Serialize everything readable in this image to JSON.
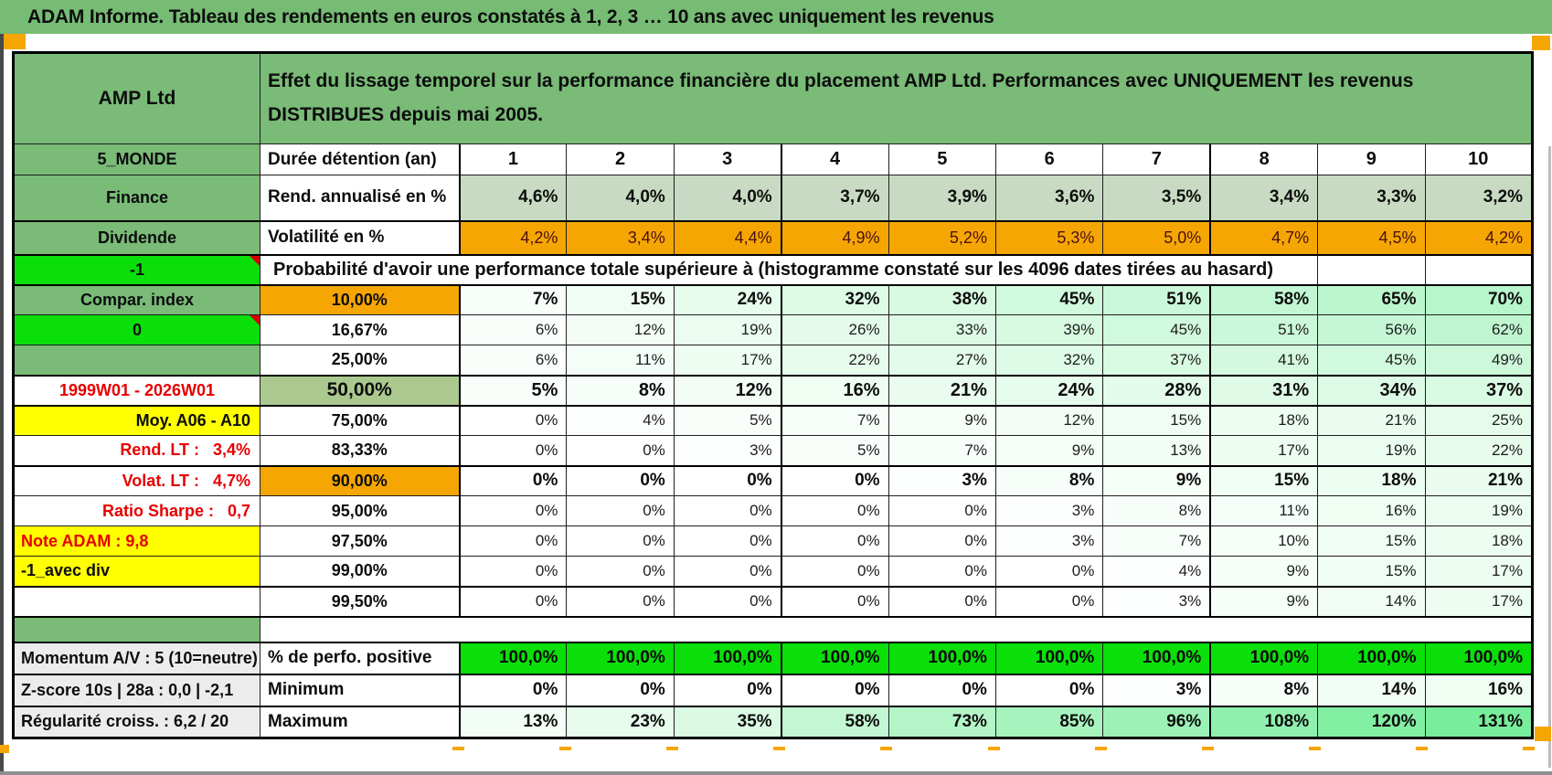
{
  "window": {
    "title_bar": "ADAM Informe. Tableau des rendements en euros constatés à 1, 2, 3 … 10 ans avec uniquement les revenus"
  },
  "colors": {
    "green": "#79BB77",
    "bright_green": "#0ADF0A",
    "orange": "#F6A603",
    "yellow": "#FFFF00",
    "sage": "#C8DBC2",
    "sage_dark": "#ABC98E",
    "red_text": "#E60000",
    "dark_red_text": "#4A1111",
    "heat_max_green": "#78ED9B"
  },
  "header": {
    "product": "AMP Ltd",
    "description": "Effet du lissage temporel sur la performance financière du placement AMP Ltd. Performances avec UNIQUEMENT les revenus DISTRIBUES depuis mai 2005."
  },
  "table": {
    "duration": {
      "label": "5_MONDE",
      "header": "Durée détention (an)",
      "values": [
        "1",
        "2",
        "3",
        "4",
        "5",
        "6",
        "7",
        "8",
        "9",
        "10"
      ]
    },
    "metric_rows": [
      {
        "label": "Finance",
        "label_style": "green",
        "header": "Rend. annualisé en %",
        "cell_style": "sage",
        "bold": true,
        "values": [
          "4,6%",
          "4,0%",
          "4,0%",
          "3,7%",
          "3,9%",
          "3,6%",
          "3,5%",
          "3,4%",
          "3,3%",
          "3,2%"
        ]
      },
      {
        "label": "Dividende",
        "label_style": "green",
        "header": "Volatilité en %",
        "cell_style": "orange",
        "bold": false,
        "values": [
          "4,2%",
          "3,4%",
          "4,4%",
          "4,9%",
          "5,2%",
          "5,3%",
          "5,0%",
          "4,7%",
          "4,5%",
          "4,2%"
        ]
      }
    ],
    "probability_header": {
      "label": "-1",
      "label_style": "bright",
      "text": "Probabilité d'avoir une performance totale supérieure à (histogramme constaté sur les 4096 dates tirées au hasard)"
    },
    "probability_rows": [
      {
        "label": "Compar. index",
        "label_style": "green",
        "header": "10,00%",
        "header_style": "orange",
        "bold": true,
        "thick": true,
        "values": [
          "7%",
          "15%",
          "24%",
          "32%",
          "38%",
          "45%",
          "51%",
          "58%",
          "65%",
          "70%"
        ]
      },
      {
        "label": "0",
        "label_style": "bright",
        "header": "16,67%",
        "header_style": "plain",
        "bold": false,
        "thick": false,
        "values": [
          "6%",
          "12%",
          "19%",
          "26%",
          "33%",
          "39%",
          "45%",
          "51%",
          "56%",
          "62%"
        ]
      },
      {
        "label": "",
        "label_style": "green",
        "header": "25,00%",
        "header_style": "plain",
        "bold": false,
        "thick": false,
        "values": [
          "6%",
          "11%",
          "17%",
          "22%",
          "27%",
          "32%",
          "37%",
          "41%",
          "45%",
          "49%"
        ]
      },
      {
        "label": "1999W01 - 2026W01",
        "label_style": "red-center",
        "header": "50,00%",
        "header_style": "sage",
        "bold": true,
        "thick": true,
        "values": [
          "5%",
          "8%",
          "12%",
          "16%",
          "21%",
          "24%",
          "28%",
          "31%",
          "34%",
          "37%"
        ]
      },
      {
        "label": "Moy. A06 - A10",
        "label_style": "yellow-right",
        "header": "75,00%",
        "header_style": "plain",
        "bold": false,
        "thick": true,
        "values": [
          "0%",
          "4%",
          "5%",
          "7%",
          "9%",
          "12%",
          "15%",
          "18%",
          "21%",
          "25%"
        ]
      },
      {
        "label": "Rend. LT :   3,4%",
        "label_style": "red-right",
        "header": "83,33%",
        "header_style": "plain",
        "bold": false,
        "thick": false,
        "values": [
          "0%",
          "0%",
          "3%",
          "5%",
          "7%",
          "9%",
          "13%",
          "17%",
          "19%",
          "22%"
        ]
      },
      {
        "label": "Volat. LT :   4,7%",
        "label_style": "red-right",
        "header": "90,00%",
        "header_style": "orange",
        "bold": true,
        "thick": true,
        "values": [
          "0%",
          "0%",
          "0%",
          "0%",
          "3%",
          "8%",
          "9%",
          "15%",
          "18%",
          "21%"
        ]
      },
      {
        "label": "Ratio Sharpe :   0,7",
        "label_style": "red-right",
        "header": "95,00%",
        "header_style": "plain",
        "bold": false,
        "thick": false,
        "values": [
          "0%",
          "0%",
          "0%",
          "0%",
          "0%",
          "3%",
          "8%",
          "11%",
          "16%",
          "19%"
        ]
      },
      {
        "label": "Note ADAM : 9,8",
        "label_style": "yellow-red-left",
        "header": "97,50%",
        "header_style": "plain",
        "bold": false,
        "thick": false,
        "values": [
          "0%",
          "0%",
          "0%",
          "0%",
          "0%",
          "3%",
          "7%",
          "10%",
          "15%",
          "18%"
        ]
      },
      {
        "label": "-1_avec div",
        "label_style": "yellow-left",
        "header": "99,00%",
        "header_style": "plain",
        "bold": false,
        "thick": false,
        "values": [
          "0%",
          "0%",
          "0%",
          "0%",
          "0%",
          "0%",
          "4%",
          "9%",
          "15%",
          "17%"
        ]
      },
      {
        "label": "",
        "label_style": "white",
        "header": "99,50%",
        "header_style": "plain",
        "bold": false,
        "thick": true,
        "values": [
          "0%",
          "0%",
          "0%",
          "0%",
          "0%",
          "0%",
          "3%",
          "9%",
          "14%",
          "17%"
        ]
      }
    ],
    "summary_rows": [
      {
        "label": "Momentum A/V : 5 (10=neutre)",
        "label_style": "gray",
        "header": "% de perfo. positive",
        "cell_style": "bright",
        "bold": true,
        "values": [
          "100,0%",
          "100,0%",
          "100,0%",
          "100,0%",
          "100,0%",
          "100,0%",
          "100,0%",
          "100,0%",
          "100,0%",
          "100,0%"
        ]
      },
      {
        "label": "Z-score 10s | 28a : 0,0 | -2,1",
        "label_style": "gray",
        "header": "Minimum",
        "cell_style": "heat",
        "bold": true,
        "values": [
          "0%",
          "0%",
          "0%",
          "0%",
          "0%",
          "0%",
          "3%",
          "8%",
          "14%",
          "16%"
        ]
      },
      {
        "label": "Régularité croiss. : 6,2 / 20",
        "label_style": "gray",
        "header": "Maximum",
        "cell_style": "heat",
        "bold": true,
        "values": [
          "13%",
          "23%",
          "35%",
          "58%",
          "73%",
          "85%",
          "96%",
          "108%",
          "120%",
          "131%"
        ]
      }
    ]
  }
}
